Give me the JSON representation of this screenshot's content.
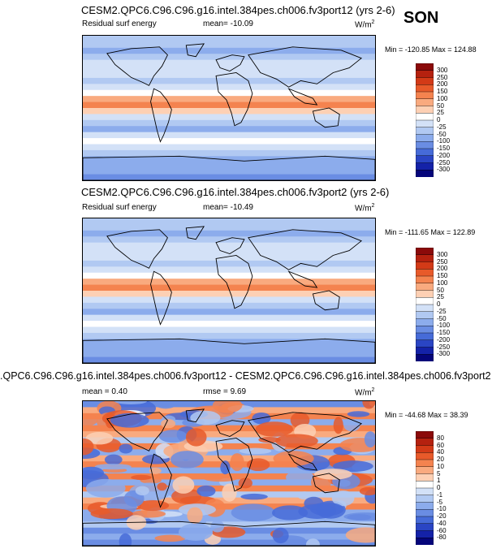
{
  "header": {
    "season": "SON"
  },
  "chart_data": [
    {
      "type": "heatmap",
      "title": "CESM2.QPC6.C96.C96.g16.intel.384pes.ch006.fv3port12 (yrs 2-6)",
      "left_label": "Residual surf energy",
      "mean_label": "mean= -10.09",
      "units": "W/m",
      "units_sup": "2",
      "minmax": "Min = -120.85 Max = 124.88",
      "colorbar_labels": [
        "300",
        "250",
        "200",
        "150",
        "100",
        "50",
        "25",
        "0",
        "-25",
        "-50",
        "-100",
        "-150",
        "-200",
        "-250",
        "-300"
      ],
      "colors": [
        "#8b0a0a",
        "#b5210f",
        "#d33a17",
        "#e85a2a",
        "#f4834f",
        "#f9aa7f",
        "#fdd0b4",
        "#ffffff",
        "#d3e1f7",
        "#b1c9f2",
        "#8cacec",
        "#6a8de3",
        "#466bd8",
        "#2a45c4",
        "#1422a8",
        "#05057a"
      ],
      "zonal_profile": [
        -40,
        -35,
        -60,
        -40,
        -20,
        -5,
        -10,
        -30,
        -15,
        10,
        60,
        120,
        45,
        -5,
        -30,
        -55,
        -25,
        5,
        -10,
        -40,
        -60,
        -85,
        -95,
        -120
      ]
    },
    {
      "type": "heatmap",
      "title": "CESM2.QPC6.C96.C96.g16.intel.384pes.ch006.fv3port2 (yrs 2-6)",
      "left_label": "Residual surf energy",
      "mean_label": "mean= -10.49",
      "units": "W/m",
      "units_sup": "2",
      "minmax": "Min = -111.65 Max = 122.89",
      "colorbar_labels": [
        "300",
        "250",
        "200",
        "150",
        "100",
        "50",
        "25",
        "0",
        "-25",
        "-50",
        "-100",
        "-150",
        "-200",
        "-250",
        "-300"
      ],
      "colors": [
        "#8b0a0a",
        "#b5210f",
        "#d33a17",
        "#e85a2a",
        "#f4834f",
        "#f9aa7f",
        "#fdd0b4",
        "#ffffff",
        "#d3e1f7",
        "#b1c9f2",
        "#8cacec",
        "#6a8de3",
        "#466bd8",
        "#2a45c4",
        "#1422a8",
        "#05057a"
      ],
      "zonal_profile": [
        -40,
        -35,
        -60,
        -40,
        -20,
        -5,
        -10,
        -30,
        -15,
        10,
        60,
        115,
        40,
        -5,
        -30,
        -55,
        -25,
        5,
        -10,
        -40,
        -60,
        -85,
        -95,
        -115
      ]
    },
    {
      "type": "heatmap",
      "title": ".QPC6.C96.C96.g16.intel.384pes.ch006.fv3port12 - CESM2.QPC6.C96.C96.g16.intel.384pes.ch006.fv3port2",
      "mean_label": "mean =   0.40",
      "rmse_label": "rmse =   9.69",
      "units": "W/m",
      "units_sup": "2",
      "minmax": "Min = -44.68 Max = 38.39",
      "colorbar_labels": [
        "80",
        "60",
        "40",
        "20",
        "10",
        "5",
        "1",
        "0",
        "-1",
        "-5",
        "-10",
        "-20",
        "-40",
        "-60",
        "-80"
      ],
      "colors": [
        "#8b0a0a",
        "#b5210f",
        "#d33a17",
        "#e85a2a",
        "#f4834f",
        "#f9aa7f",
        "#fdd0b4",
        "#ffffff",
        "#d3e1f7",
        "#b1c9f2",
        "#8cacec",
        "#6a8de3",
        "#466bd8",
        "#2a45c4",
        "#1422a8",
        "#05057a"
      ],
      "zonal_profile": [
        -15,
        5,
        12,
        -8,
        15,
        8,
        -5,
        10,
        -10,
        5,
        12,
        -8,
        15,
        -6,
        10,
        -4,
        8,
        12,
        -6,
        -10,
        -5,
        -15,
        -10,
        -20
      ]
    }
  ]
}
